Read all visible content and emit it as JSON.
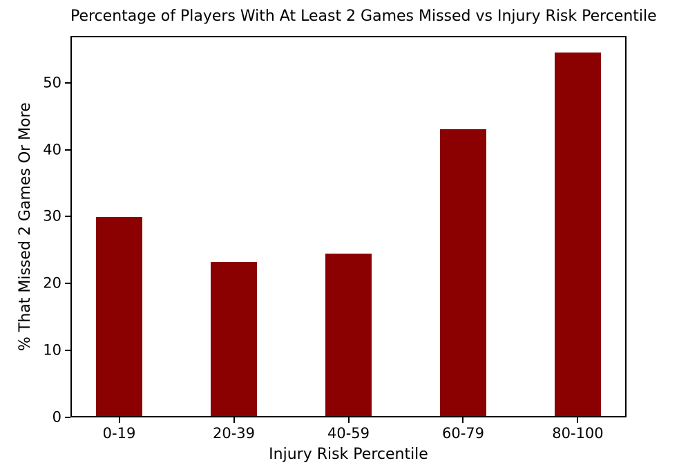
{
  "chart_data": {
    "type": "bar",
    "title": "Percentage of Players With At Least 2 Games Missed vs Injury Risk Percentile",
    "xlabel": "Injury Risk Percentile",
    "ylabel": "% That Missed 2 Games Or More",
    "categories": [
      "0-19",
      "20-39",
      "40-59",
      "60-79",
      "80-100"
    ],
    "values": [
      29.7,
      23.0,
      24.3,
      42.9,
      54.3
    ],
    "yticks": [
      0,
      10,
      20,
      30,
      40,
      50
    ],
    "ylim": [
      0,
      57
    ],
    "bar_color": "#8B0000",
    "axis_color": "#000000",
    "background_color": "#FFFFFF",
    "grid": false,
    "legend": "none"
  }
}
